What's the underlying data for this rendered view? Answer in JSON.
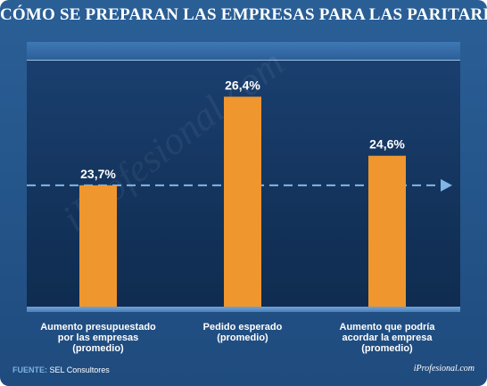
{
  "title": "CÓMO SE PREPARAN LAS EMPRESAS PARA LAS PARITARIAS",
  "watermark": "iProfesional.com",
  "source_prefix": "FUENTE:",
  "source_text": "SEL Consultores",
  "brand": "iProfesional.com",
  "colors": {
    "bar": "#ef962f",
    "reference_line": "#7fb6e6",
    "background": "#1f4b7e"
  },
  "chart_data": {
    "type": "bar",
    "categories": [
      [
        "Aumento presupuestado",
        "por las empresas",
        "(promedio)"
      ],
      [
        "Pedido esperado",
        "(promedio)"
      ],
      [
        "Aumento que podría",
        "acordar la empresa",
        "(promedio)"
      ]
    ],
    "values": [
      23.7,
      26.4,
      24.6
    ],
    "value_labels": [
      "23,7%",
      "26,4%",
      "24,6%"
    ],
    "ylim": [
      20,
      27.5
    ],
    "reference_line": 23.7,
    "grid": false,
    "legend": "none",
    "xlabel": "",
    "ylabel": ""
  }
}
